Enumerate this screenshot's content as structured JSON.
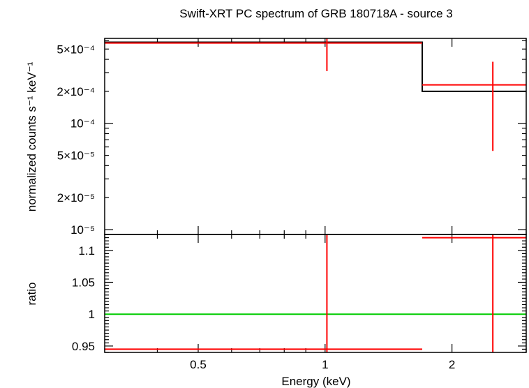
{
  "chart_data": [
    {
      "panel": "spectrum",
      "type": "scatter",
      "title": "Swift-XRT PC spectrum of GRB 180718A - source 3",
      "ylabel": "normalized counts s⁻¹ keV⁻¹",
      "yscale": "log",
      "xscale": "log",
      "xlim": [
        0.3,
        3.0
      ],
      "ylim": [
        9e-06,
        0.00063
      ],
      "ytick_labels": [
        "5×10⁻⁴",
        "2×10⁻⁴",
        "10⁻⁴",
        "5×10⁻⁵",
        "2×10⁻⁵",
        "10⁻⁵"
      ],
      "ytick_values": [
        0.0005,
        0.0002,
        0.0001,
        5e-05,
        2e-05,
        1e-05
      ],
      "data_points": [
        {
          "x_lo": 0.3,
          "x_hi": 1.7,
          "x": 1.01,
          "y": 0.00057,
          "y_lo": 0.00031,
          "y_hi": 0.00063
        },
        {
          "x_lo": 1.7,
          "x_hi": 3.0,
          "x": 2.5,
          "y": 0.00023,
          "y_lo": 5.5e-05,
          "y_hi": 0.00038
        }
      ],
      "model_steps": [
        {
          "x_lo": 0.3,
          "x_hi": 1.7,
          "y": 0.00058
        },
        {
          "x_lo": 1.7,
          "x_hi": 3.0,
          "y": 0.0002
        }
      ],
      "colors": {
        "data": "#ff0000",
        "model": "#000000"
      }
    },
    {
      "panel": "ratio",
      "type": "scatter",
      "xlabel": "Energy (keV)",
      "ylabel": "ratio",
      "xscale": "log",
      "xlim": [
        0.3,
        3.0
      ],
      "ylim": [
        0.94,
        1.125
      ],
      "xtick_labels": [
        "0.5",
        "1",
        "2"
      ],
      "xtick_values": [
        0.5,
        1,
        2
      ],
      "ytick_labels": [
        "1.1",
        "1.05",
        "1",
        "0.95"
      ],
      "ytick_values": [
        1.1,
        1.05,
        1.0,
        0.95
      ],
      "data_points": [
        {
          "x_lo": 0.3,
          "x_hi": 1.7,
          "x": 1.01,
          "y": 0.945,
          "y_lo": 0.94,
          "y_hi": 1.125
        },
        {
          "x_lo": 1.7,
          "x_hi": 3.0,
          "x": 2.5,
          "y": 1.12,
          "y_lo": 0.94,
          "y_hi": 1.125
        }
      ],
      "reference_line": 1.0,
      "colors": {
        "data": "#ff0000",
        "reference": "#00cc00"
      }
    }
  ]
}
